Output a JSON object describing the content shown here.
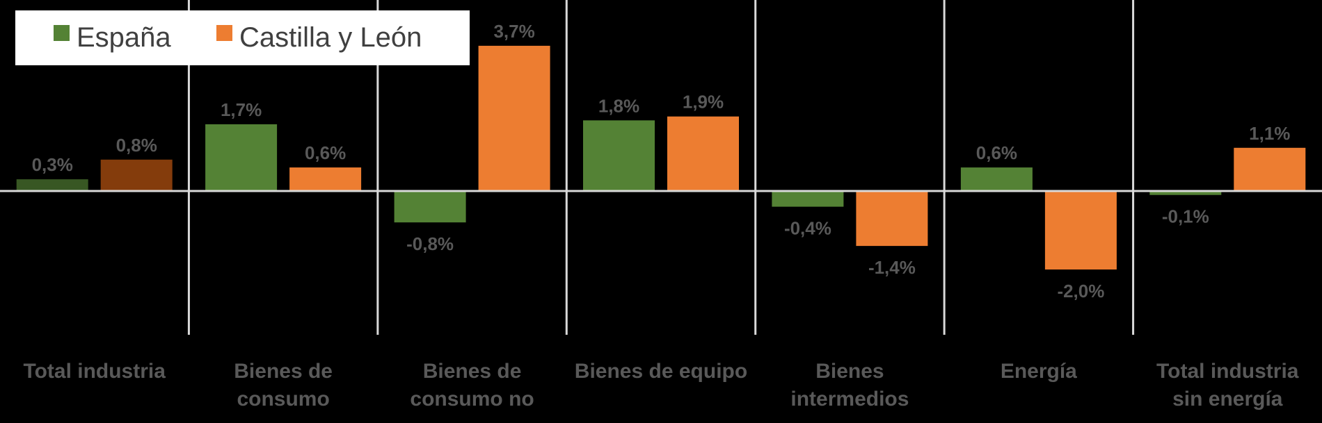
{
  "chart_data": {
    "type": "bar",
    "categories": [
      "Total industria",
      "Bienes de consumo",
      "Bienes de consumo no",
      "Bienes de equipo",
      "Bienes intermedios",
      "Energía",
      "Total industria sin energía"
    ],
    "category_lines": [
      [
        "Total industria"
      ],
      [
        "Bienes de",
        "consumo"
      ],
      [
        "Bienes de",
        "consumo no"
      ],
      [
        "Bienes de equipo"
      ],
      [
        "Bienes",
        "intermedios"
      ],
      [
        "Energía"
      ],
      [
        "Total industria",
        "sin energía"
      ]
    ],
    "series": [
      {
        "name": "España",
        "values": [
          0.3,
          1.7,
          -0.8,
          1.8,
          -0.4,
          0.6,
          -0.1
        ],
        "labels": [
          "0,3%",
          "1,7%",
          "-0,8%",
          "1,8%",
          "-0,4%",
          "0,6%",
          "-0,1%"
        ],
        "color": "#548235",
        "highlight_color": "#385723"
      },
      {
        "name": "Castilla y León",
        "values": [
          0.8,
          0.6,
          3.7,
          1.9,
          -1.4,
          -2.0,
          1.1
        ],
        "labels": [
          "0,8%",
          "0,6%",
          "3,7%",
          "1,9%",
          "-1,4%",
          "-2,0%",
          "1,1%"
        ],
        "color": "#ED7D31",
        "highlight_color": "#843C0C"
      }
    ],
    "highlighted_category": 0,
    "ylim": [
      -3.0,
      4.0
    ],
    "legend_position": "top-left",
    "grid": false,
    "colors": {
      "background": "#000000",
      "axis": "#D9D9D9",
      "data_label": "#595959",
      "category_label": "#595959",
      "legend_background": "#FFFFFF",
      "legend_text": "#404040"
    }
  }
}
